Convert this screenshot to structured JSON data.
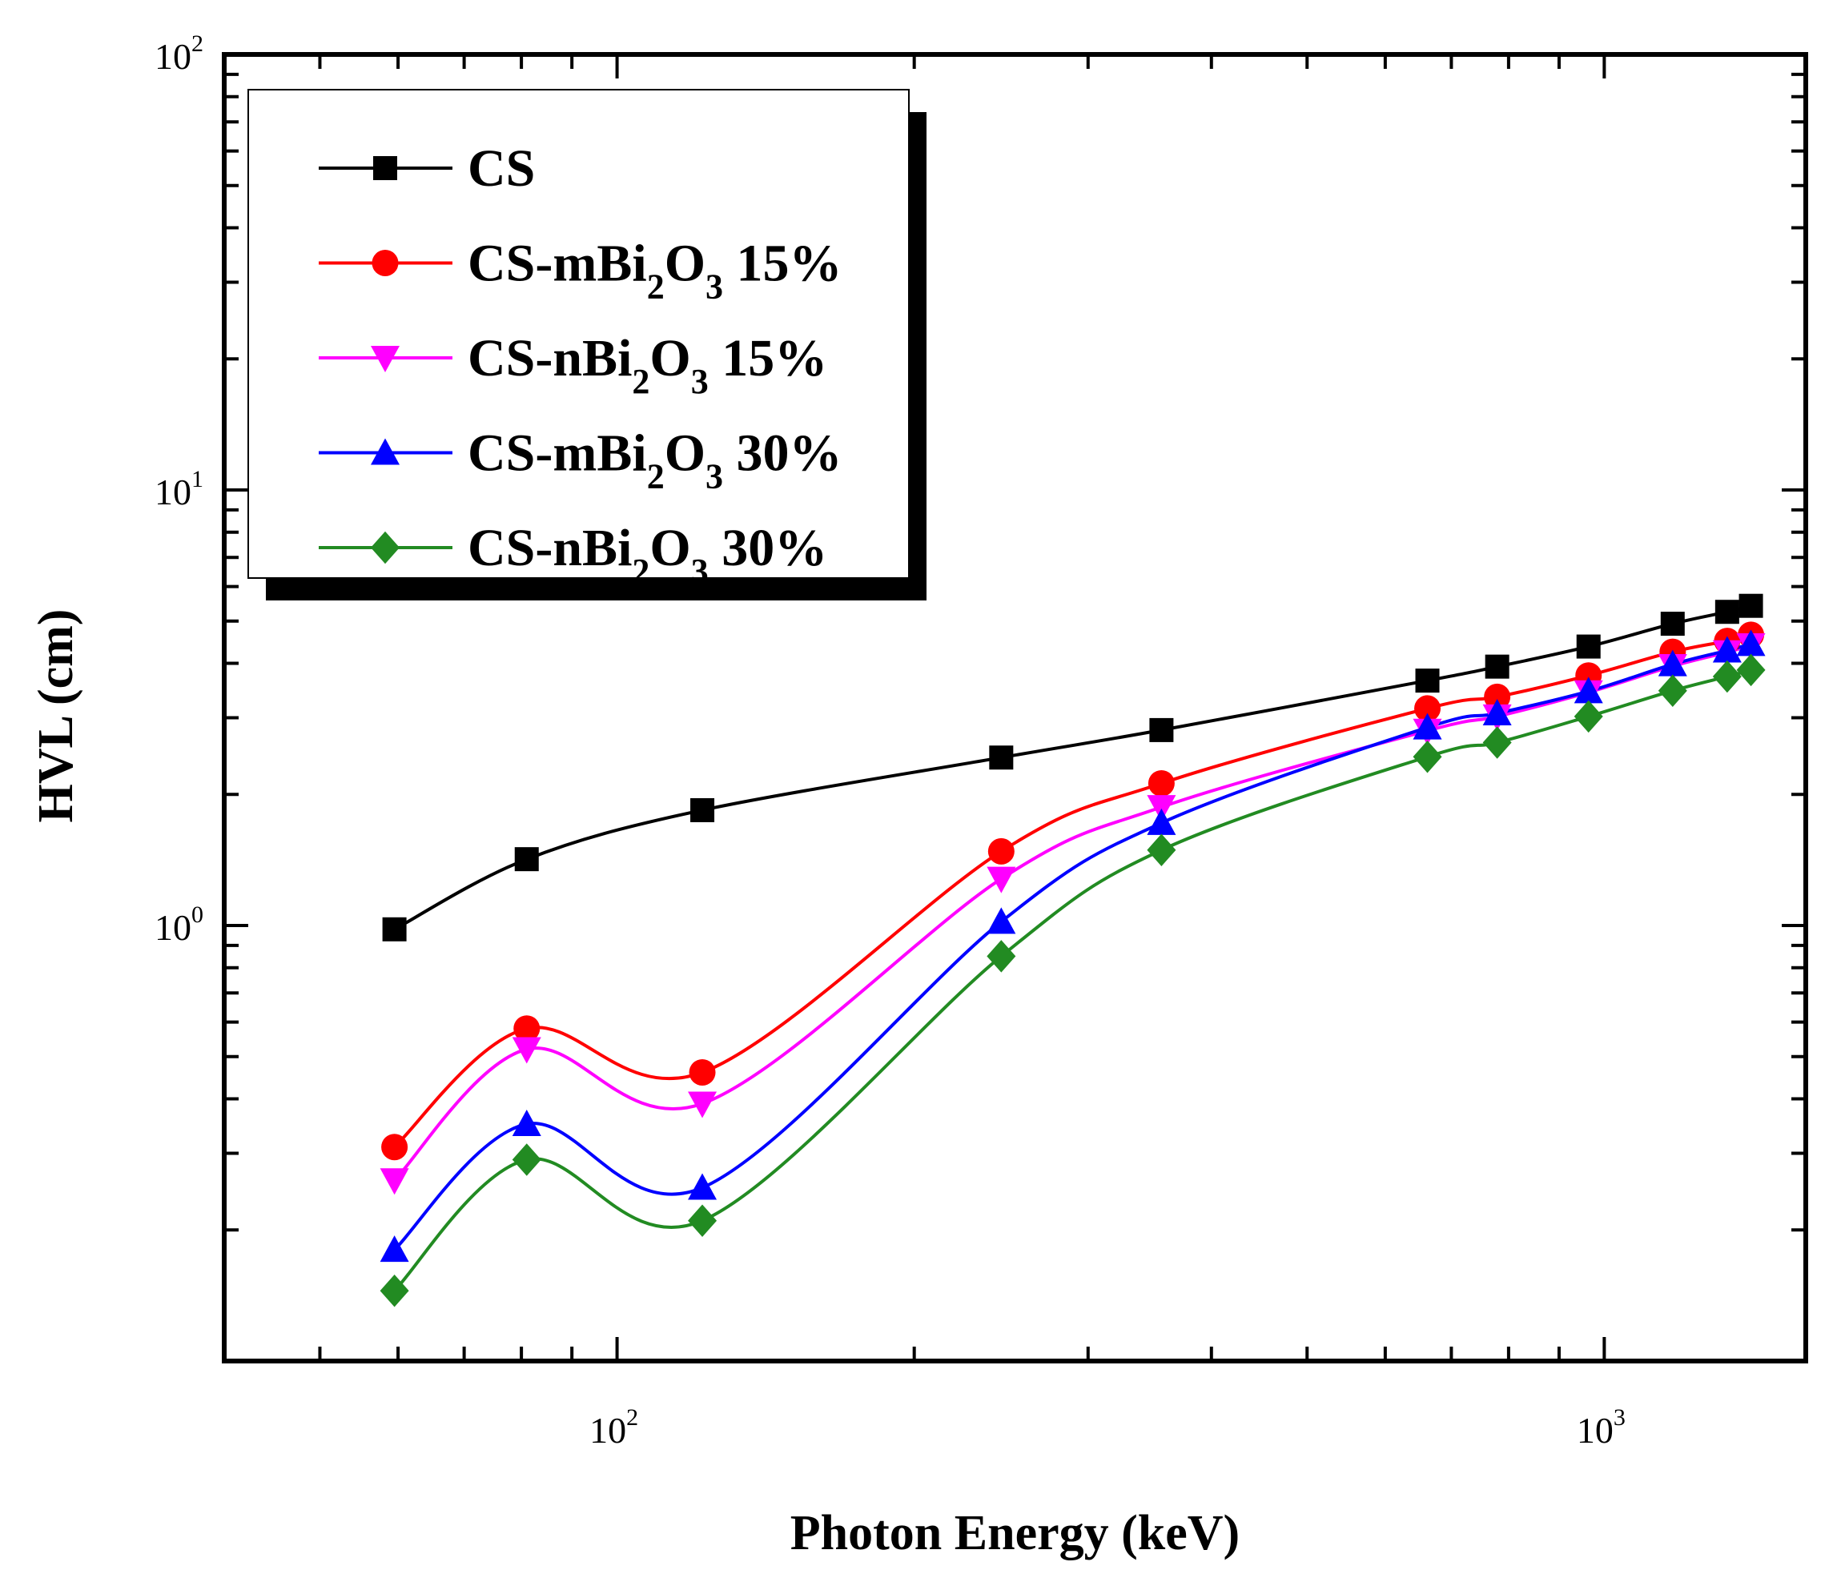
{
  "chart_data": {
    "type": "line",
    "xlabel": "Photon Energy (keV)",
    "ylabel": "HVL (cm)",
    "x_scale": "log",
    "y_scale": "log",
    "xlim": [
      40,
      1600
    ],
    "ylim": [
      0.1,
      100
    ],
    "x_ticks": [
      {
        "value": 100,
        "base": "10",
        "exp": "2"
      },
      {
        "value": 1000,
        "base": "10",
        "exp": "3"
      }
    ],
    "y_ticks": [
      {
        "value": 1,
        "base": "10",
        "exp": "0"
      },
      {
        "value": 10,
        "base": "10",
        "exp": "1"
      },
      {
        "value": 100,
        "base": "10",
        "exp": "2"
      }
    ],
    "legend_position": "top-left",
    "x": [
      59.5,
      81,
      122,
      245,
      356,
      662,
      779,
      964,
      1173,
      1332,
      1408
    ],
    "series": [
      {
        "name": "CS",
        "legend": {
          "pre": "CS",
          "sub1": "",
          "mid": "",
          "sub2": "",
          "post": ""
        },
        "color": "#000000",
        "marker": "square",
        "values": [
          0.98,
          1.42,
          1.84,
          2.43,
          2.81,
          3.65,
          3.93,
          4.37,
          4.93,
          5.25,
          5.42
        ]
      },
      {
        "name": "CS-mBi2O3 15%",
        "legend": {
          "pre": "CS-mBi",
          "sub1": "2",
          "mid": "O",
          "sub2": "3",
          "post": " 15%"
        },
        "color": "#ff0000",
        "marker": "circle",
        "values": [
          0.31,
          0.58,
          0.46,
          1.48,
          2.12,
          3.15,
          3.35,
          3.75,
          4.25,
          4.5,
          4.65
        ]
      },
      {
        "name": "CS-nBi2O3 15%",
        "legend": {
          "pre": "CS-nBi",
          "sub1": "2",
          "mid": "O",
          "sub2": "3",
          "post": " 15%"
        },
        "color": "#ff00ff",
        "marker": "triangle-down",
        "values": [
          0.26,
          0.52,
          0.39,
          1.28,
          1.87,
          2.8,
          3.02,
          3.43,
          3.94,
          4.24,
          4.4
        ]
      },
      {
        "name": "CS-mBi2O3 30%",
        "legend": {
          "pre": "CS-mBi",
          "sub1": "2",
          "mid": "O",
          "sub2": "3",
          "post": " 30%"
        },
        "color": "#0000ff",
        "marker": "triangle-up",
        "values": [
          0.18,
          0.35,
          0.25,
          1.02,
          1.72,
          2.85,
          3.07,
          3.45,
          3.98,
          4.28,
          4.43
        ]
      },
      {
        "name": "CS-nBi2O3 30%",
        "legend": {
          "pre": "CS-nBi",
          "sub1": "2",
          "mid": "O",
          "sub2": "3",
          "post": " 30%"
        },
        "color": "#228b22",
        "marker": "diamond",
        "values": [
          0.145,
          0.29,
          0.21,
          0.85,
          1.49,
          2.44,
          2.63,
          3.02,
          3.46,
          3.73,
          3.86
        ]
      }
    ]
  }
}
